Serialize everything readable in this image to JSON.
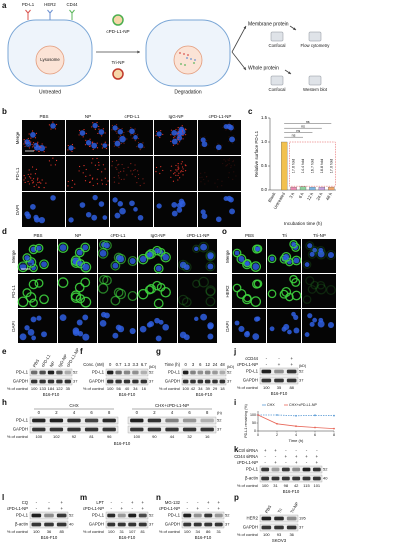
{
  "panel_labels": [
    "a",
    "b",
    "c",
    "d",
    "o",
    "e",
    "f",
    "g",
    "j",
    "h",
    "i",
    "k",
    "l",
    "m",
    "n",
    "p"
  ],
  "a": {
    "receptors": [
      "PD-L1",
      "HER2",
      "CD44"
    ],
    "lysosome": "Lysosome",
    "untreated": "Untreated",
    "agents": [
      "cPD-L1-NP",
      "Tri-NP"
    ],
    "degradation": "Degradation",
    "membrane": "Membrane protein",
    "whole": "Whole protein",
    "membrane_methods": [
      "Confocal",
      "Flow cytometry"
    ],
    "whole_methods": [
      "Confocal",
      "Western blot"
    ]
  },
  "b": {
    "columns": [
      "PBS",
      "NP",
      "cPD-L1",
      "IgG-NP",
      "cPD-L1-NP"
    ],
    "rows": [
      "Merge",
      "PD-L1",
      "DAPI"
    ],
    "scale": "20 μm"
  },
  "c": {
    "type": "bar",
    "y_label": "Relative surface PD-L1",
    "x_label": "Incubation time (h)",
    "categories": [
      "Blank",
      "Untreated",
      "3 h",
      "6 h",
      "12 h",
      "24 h",
      "48 h"
    ],
    "values": [
      0.0,
      1.0,
      0.06,
      0.07,
      0.06,
      0.06,
      0.06
    ],
    "colors": [
      "#b0b0b0",
      "#f2c14e",
      "#f08cb4",
      "#8fd19e",
      "#7fb8e6",
      "#c9a2e0",
      "#f5a86b"
    ],
    "fold_labels": [
      "17.6 fold",
      "14.4 fold",
      "16.7 fold",
      "16.8 fold",
      "17.0 fold"
    ],
    "significance": [
      "ns",
      "ns",
      "ns",
      "ns"
    ],
    "ylim": [
      0,
      1.5
    ],
    "yticks": [
      {
        "value": 0,
        "label": "0.0"
      },
      {
        "value": 0.5,
        "label": "0.5"
      },
      {
        "value": 1,
        "label": "1.0"
      },
      {
        "value": 1.5,
        "label": "1.5"
      }
    ]
  },
  "d": {
    "columns": [
      "PBS",
      "NP",
      "cPD-L1",
      "IgG-NP",
      "cPD-L1-NP"
    ],
    "rows": [
      "Merge",
      "PD-L1",
      "DAPI"
    ],
    "scale": "20 μm"
  },
  "o": {
    "columns": [
      "PBS",
      "Tri",
      "Tri-NP"
    ],
    "rows": [
      "Merge",
      "HER2",
      "DAPI"
    ]
  },
  "e": {
    "lanes": [
      "PBS",
      "cPD-L1",
      "NP",
      "IgG-NP",
      "cPD-L1-NP"
    ],
    "bands": [
      {
        "name": "PD-L1",
        "kd": "52"
      },
      {
        "name": "GAPDH",
        "kd": "37"
      }
    ],
    "pct_label": "% of control",
    "pct": [
      100,
      133,
      184,
      122,
      35
    ],
    "cell": "B16-F10"
  },
  "f": {
    "header": {
      "label": "Conc. (nM)",
      "lanes": [
        "0",
        "0.7",
        "1.3",
        "3.3",
        "6.7"
      ]
    },
    "kd_unit": "(kD)",
    "bands": [
      {
        "name": "PD-L1",
        "kd": "52"
      },
      {
        "name": "GAPDH",
        "kd": "37"
      }
    ],
    "pct_label": "% of control",
    "pct": [
      100,
      56,
      40,
      34,
      16
    ],
    "cell": "B16-F10"
  },
  "g": {
    "header": {
      "label": "Time (h)",
      "lanes": [
        "0",
        "3",
        "6",
        "12",
        "24",
        "48"
      ]
    },
    "kd_unit": "(kD)",
    "bands": [
      {
        "name": "PD-L1",
        "kd": "52"
      },
      {
        "name": "GAPDH",
        "kd": "37"
      }
    ],
    "pct_label": "% of control",
    "pct": [
      100,
      42,
      34,
      39,
      29,
      18
    ],
    "cell": "B16-F10"
  },
  "j": {
    "signs": [
      {
        "label": "cCD44",
        "values": [
          "-",
          "-",
          "+"
        ]
      },
      {
        "label": "cPD-L1-NP",
        "values": [
          "-",
          "+",
          "+"
        ]
      }
    ],
    "kd_unit": "(kD)",
    "bands": [
      {
        "name": "PD-L1",
        "kd": "52"
      },
      {
        "name": "GAPDH",
        "kd": "37"
      }
    ],
    "pct_label": "% of control",
    "pct": [
      100,
      35,
      88
    ],
    "cell": "B16-F10"
  },
  "h": {
    "groups": [
      {
        "label": "CHX",
        "lanes": [
          "0",
          "2",
          "4",
          "6",
          "8"
        ],
        "pct": [
          100,
          102,
          92,
          81,
          96
        ]
      },
      {
        "label": "CHX+cPD-L1-NP",
        "lanes": [
          "0",
          "2",
          "4",
          "6",
          "8"
        ],
        "pct": [
          100,
          90,
          44,
          32,
          16
        ]
      }
    ],
    "unit": "(h)",
    "bands": [
      {
        "name": "PD-L1",
        "kd": "52"
      },
      {
        "name": "GAPDH",
        "kd": "37"
      }
    ],
    "pct_label": "% of control",
    "cell": "B16-F10"
  },
  "i": {
    "type": "line",
    "y_label": "PD-L1 remaining (%)",
    "x_label": "Time (h)",
    "x": [
      0,
      2,
      4,
      6,
      8
    ],
    "series": [
      {
        "name": "CHX",
        "color": "#5b9bd5",
        "values": [
          100,
          100,
          95,
          98,
          96
        ]
      },
      {
        "name": "CHX+cPD-L1-NP",
        "color": "#e8685a",
        "values": [
          100,
          45,
          30,
          22,
          15
        ]
      }
    ],
    "xlim": [
      0,
      8
    ],
    "xticks": [
      0,
      2,
      4,
      6,
      8
    ],
    "ylim": [
      0,
      125
    ],
    "yticks": [
      0,
      50,
      100
    ]
  },
  "k": {
    "signs": [
      {
        "label": "Ctrl siRNA",
        "values": [
          "+",
          "+",
          "-",
          "-",
          "-",
          "-"
        ]
      },
      {
        "label": "CD44 siRNA",
        "values": [
          "-",
          "-",
          "+",
          "+",
          "+",
          "+"
        ]
      },
      {
        "label": "cPD-L1-NP",
        "values": [
          "-",
          "+",
          "-",
          "+",
          "-",
          "+"
        ]
      }
    ],
    "bands": [
      {
        "name": "PD-L1",
        "kd": "52"
      },
      {
        "name": "β-actin",
        "kd": "40"
      }
    ],
    "pct_label": "% of control",
    "pct": [
      100,
      31,
      98,
      42,
      115,
      101
    ],
    "cell": "B16-F10"
  },
  "l": {
    "signs": [
      {
        "label": "CQ",
        "values": [
          "-",
          "-",
          "+"
        ]
      },
      {
        "label": "cPD-L1-NP",
        "values": [
          "-",
          "+",
          "+"
        ]
      }
    ],
    "bands": [
      {
        "name": "PD-L1",
        "kd": "52"
      },
      {
        "name": "β-actin",
        "kd": "40"
      }
    ],
    "pct_label": "% of control",
    "pct": [
      100,
      36,
      85
    ],
    "cell": "B16-F10"
  },
  "m": {
    "signs": [
      {
        "label": "LPT",
        "values": [
          "-",
          "-",
          "+",
          "+"
        ]
      },
      {
        "label": "cPD-L1-NP",
        "values": [
          "-",
          "+",
          "-",
          "+"
        ]
      }
    ],
    "bands": [
      {
        "name": "PD-L1",
        "kd": "52"
      },
      {
        "name": "GAPDH",
        "kd": "37"
      }
    ],
    "pct_label": "% of control",
    "pct": [
      100,
      31,
      107,
      81
    ],
    "cell": "B16-F10"
  },
  "n": {
    "signs": [
      {
        "label": "MG-132",
        "values": [
          "-",
          "-",
          "+",
          "+"
        ]
      },
      {
        "label": "cPD-L1-NP",
        "values": [
          "-",
          "+",
          "-",
          "+"
        ]
      }
    ],
    "bands": [
      {
        "name": "PD-L1",
        "kd": "52"
      },
      {
        "name": "GAPDH",
        "kd": "37"
      }
    ],
    "pct_label": "% of control",
    "pct": [
      100,
      34,
      86,
      31
    ],
    "cell": "B16-F10"
  },
  "p": {
    "lanes": [
      "PBS",
      "Tri",
      "Tri-NP"
    ],
    "bands": [
      {
        "name": "HER2",
        "kd": "195"
      },
      {
        "name": "GAPDH",
        "kd": "37"
      }
    ],
    "pct_label": "% of control",
    "pct": [
      100,
      93,
      36
    ],
    "cell": "SKOV3"
  }
}
